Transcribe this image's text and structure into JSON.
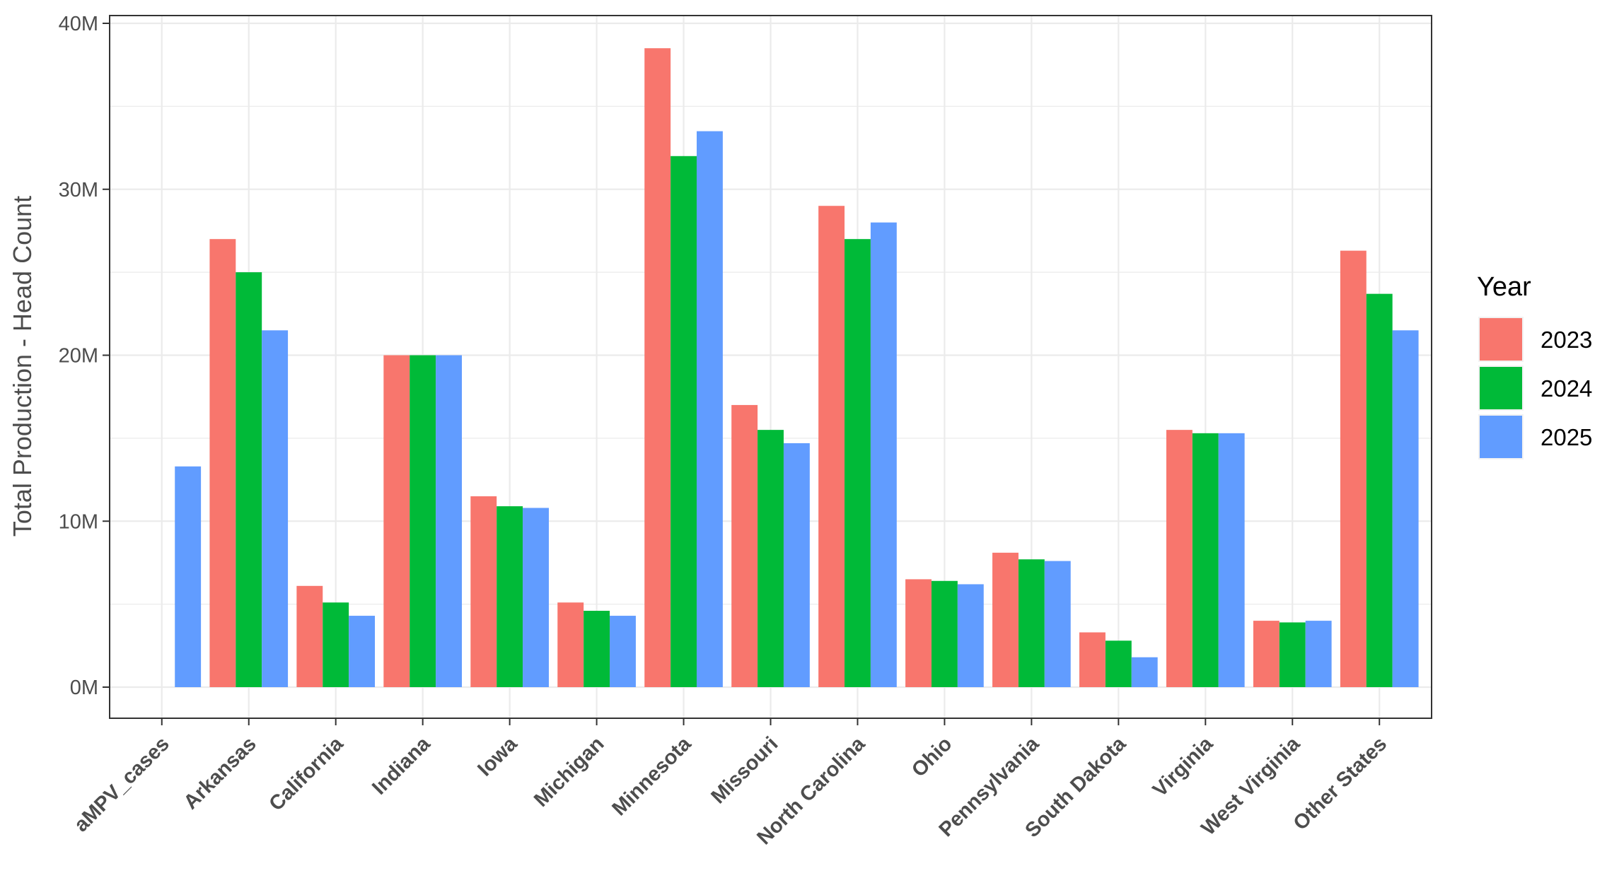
{
  "chart_data": {
    "type": "bar",
    "title": "",
    "xlabel": "",
    "ylabel": "Total Production - Head Count",
    "ylim": [
      0,
      40000000
    ],
    "yticks": [
      0,
      10000000,
      20000000,
      30000000,
      40000000
    ],
    "ytick_labels": [
      "0M",
      "10M",
      "20M",
      "30M",
      "40M"
    ],
    "grid": true,
    "legend_title": "Year",
    "legend_position": "right",
    "categories": [
      "aMPV_cases",
      "Arkansas",
      "California",
      "Indiana",
      "Iowa",
      "Michigan",
      "Minnesota",
      "Missouri",
      "North Carolina",
      "Ohio",
      "Pennsylvania",
      "South Dakota",
      "Virginia",
      "West Virginia",
      "Other States"
    ],
    "series": [
      {
        "name": "2023",
        "color": "#F8766D",
        "values": [
          null,
          27000000,
          6100000,
          20000000,
          11500000,
          5100000,
          38500000,
          17000000,
          29000000,
          6500000,
          8100000,
          3300000,
          15500000,
          4000000,
          26300000
        ]
      },
      {
        "name": "2024",
        "color": "#00BA38",
        "values": [
          null,
          25000000,
          5100000,
          20000000,
          10900000,
          4600000,
          32000000,
          15500000,
          27000000,
          6400000,
          7700000,
          2800000,
          15300000,
          3900000,
          23700000
        ]
      },
      {
        "name": "2025",
        "color": "#619CFF",
        "values": [
          13300000,
          21500000,
          4300000,
          20000000,
          10800000,
          4300000,
          33500000,
          14700000,
          28000000,
          6200000,
          7600000,
          1800000,
          15300000,
          4000000,
          21500000
        ]
      }
    ]
  }
}
